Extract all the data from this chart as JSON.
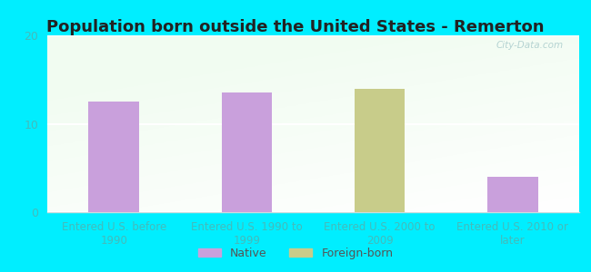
{
  "title": "Population born outside the United States - Remerton",
  "categories": [
    "Entered U.S. before\n1990",
    "Entered U.S. 1990 to\n1999",
    "Entered U.S. 2000 to\n2009",
    "Entered U.S. 2010 or\nlater"
  ],
  "values": [
    12.5,
    13.5,
    14.0,
    4.0
  ],
  "bar_colors": [
    "#c9a0dc",
    "#c9a0dc",
    "#c8cc8a",
    "#c9a0dc"
  ],
  "ylim": [
    0,
    20
  ],
  "yticks": [
    0,
    10,
    20
  ],
  "legend_labels": [
    "Native",
    "Foreign-born"
  ],
  "legend_colors": [
    "#c9a0dc",
    "#c8cc8a"
  ],
  "outer_bg": "#00eeff",
  "title_fontsize": 13,
  "tick_label_color": "#44bbbb",
  "watermark": "City-Data.com",
  "bar_width": 0.38,
  "grid_color": "#ddeeee",
  "spine_color": "#ccdddd"
}
